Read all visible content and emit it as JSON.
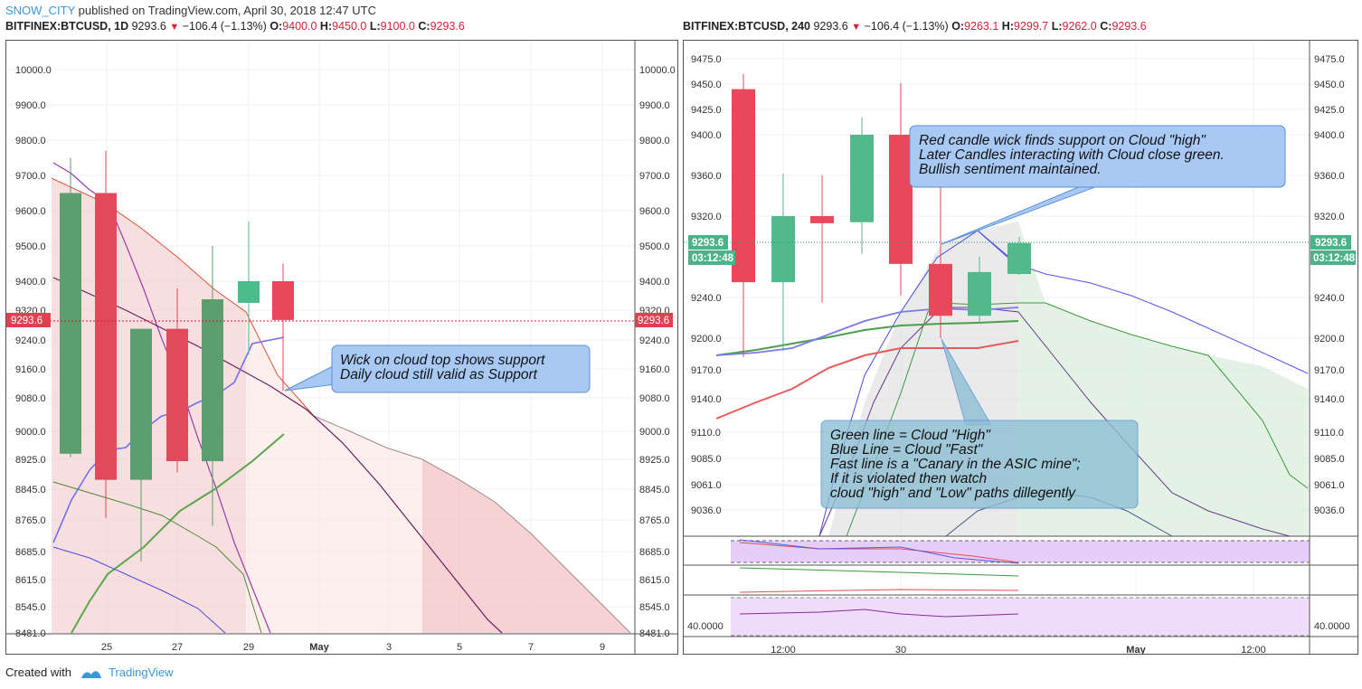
{
  "header": {
    "user": "SNOW_CITY",
    "rest": " published on TradingView.com, April 30, 2018 12:47 UTC"
  },
  "footer": {
    "created": "Created with",
    "brand": "TradingView"
  },
  "left_legend": {
    "symbol": "BITFINEX:BTCUSD, 1D",
    "last": "9293.6",
    "change": "−106.4 (−1.13%)",
    "o_label": "O:",
    "o": "9400.0",
    "h_label": "H:",
    "h": "9450.0",
    "l_label": "L:",
    "l": "9100.0",
    "c_label": "C:",
    "c": "9293.6"
  },
  "right_legend": {
    "symbol": "BITFINEX:BTCUSD, 240",
    "last": "9293.6",
    "change": "−106.4 (−1.13%)",
    "o_label": "O:",
    "o": "9263.1",
    "h_label": "H:",
    "h": "9299.7",
    "l_label": "L:",
    "l": "9262.0",
    "c_label": "C:",
    "c": "9293.6"
  },
  "chart_data": [
    {
      "type": "candlestick",
      "title": "BITFINEX:BTCUSD, 1D",
      "ylim": [
        8481,
        10130
      ],
      "y_ticks": [
        "10000.0",
        "9900.0",
        "9800.0",
        "9700.0",
        "9600.0",
        "9500.0",
        "9400.0",
        "9320.0",
        "9240.0",
        "9160.0",
        "9080.0",
        "9000.0",
        "8925.0",
        "8845.0",
        "8765.0",
        "8685.0",
        "8615.0",
        "8545.0",
        "8481.0"
      ],
      "x_ticks": [
        "25",
        "27",
        "29",
        "May",
        "3",
        "5",
        "7",
        "9"
      ],
      "price_label": "9293.6",
      "candles": [
        {
          "x": 0,
          "open": 8940,
          "close": 9650,
          "high": 9750,
          "low": 8930
        },
        {
          "x": 1,
          "open": 9650,
          "close": 8870,
          "high": 9770,
          "low": 8770
        },
        {
          "x": 2,
          "open": 8870,
          "close": 9270,
          "high": 9270,
          "low": 8660
        },
        {
          "x": 3,
          "open": 9270,
          "close": 8920,
          "high": 9380,
          "low": 8890
        },
        {
          "x": 4,
          "open": 8920,
          "close": 9350,
          "high": 9500,
          "low": 8750
        },
        {
          "x": 5,
          "open": 9340,
          "close": 9400,
          "high": 9570,
          "low": 9200
        },
        {
          "x": 6,
          "open": 9400,
          "close": 9293.6,
          "high": 9450,
          "low": 9100
        }
      ],
      "annotation": "Wick on cloud top shows support\nDaily cloud still valid as Support"
    },
    {
      "type": "candlestick",
      "title": "BITFINEX:BTCUSD, 240",
      "ylim": [
        9010,
        9500
      ],
      "y_ticks": [
        "9475.0",
        "9450.0",
        "9425.0",
        "9400.0",
        "9360.0",
        "9320.0",
        "9240.0",
        "9200.0",
        "9170.0",
        "9140.0",
        "9110.0",
        "9085.0",
        "9061.0",
        "9036.0"
      ],
      "x_ticks": [
        "12:00",
        "30",
        "12:00",
        "May",
        "12:00"
      ],
      "price_label": "9293.6",
      "countdown": "03:12:48",
      "candles": [
        {
          "x": 0,
          "open": 9445,
          "close": 9255,
          "high": 9460,
          "low": 9182
        },
        {
          "x": 1,
          "open": 9255,
          "close": 9320,
          "high": 9362,
          "low": 9188
        },
        {
          "x": 2,
          "open": 9320,
          "close": 9313,
          "high": 9360,
          "low": 9235
        },
        {
          "x": 3,
          "open": 9314,
          "close": 9400,
          "high": 9417,
          "low": 9283
        },
        {
          "x": 4,
          "open": 9400,
          "close": 9273,
          "high": 9451,
          "low": 9242
        },
        {
          "x": 5,
          "open": 9273,
          "close": 9222,
          "high": 9350,
          "low": 9200
        },
        {
          "x": 6,
          "open": 9222,
          "close": 9265,
          "high": 9280,
          "low": 9214
        },
        {
          "x": 7,
          "open": 9263.1,
          "close": 9293.6,
          "high": 9299.7,
          "low": 9262
        }
      ],
      "oscillator_label": "40.0000",
      "annotation_top": "Red candle wick finds support on Cloud \"high\"\nLater Candles interacting with Cloud close green.\nBullish sentiment maintained.",
      "annotation_bottom": "Green line = Cloud \"High\"\nBlue Line = Cloud \"Fast\"\nFast line is a \"Canary in the ASIC mine\";\nIf it is violated then watch\ncloud \"high\" and \"Low\" paths dillegently"
    }
  ]
}
